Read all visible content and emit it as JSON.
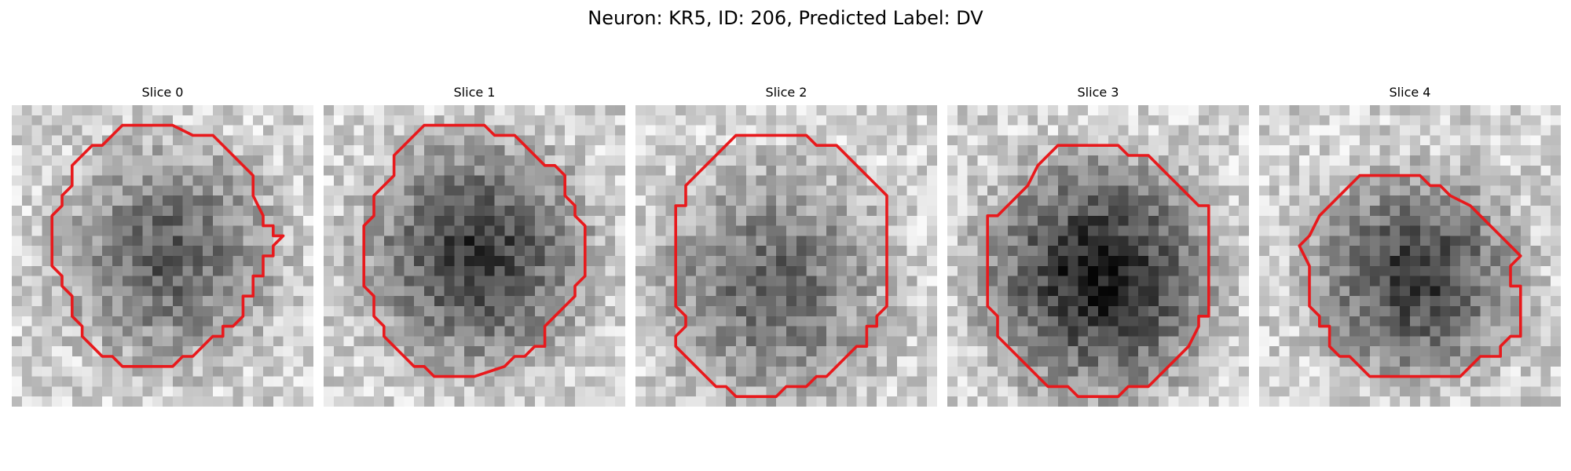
{
  "figure": {
    "title": "Neuron: KR5, ID: 206, Predicted Label: DV"
  },
  "style": {
    "contour_color": "#e8191c",
    "background": "#ffffff",
    "colormap": "gray"
  },
  "panels": [
    {
      "title": "Slice 0",
      "image_description": "grayscale pixelated microscopy crop of a neuron with red segmentation contour",
      "center_darkness": 0.45,
      "contour_cells": [
        [
          11,
          2
        ],
        [
          16,
          2
        ],
        [
          18,
          3
        ],
        [
          20,
          3
        ],
        [
          22,
          5
        ],
        [
          24,
          7
        ],
        [
          24,
          9
        ],
        [
          25,
          11
        ],
        [
          25,
          12
        ],
        [
          26,
          12
        ],
        [
          26,
          13
        ],
        [
          27,
          13
        ],
        [
          26,
          14
        ],
        [
          26,
          15
        ],
        [
          25,
          15
        ],
        [
          25,
          17
        ],
        [
          24,
          17
        ],
        [
          24,
          19
        ],
        [
          23,
          19
        ],
        [
          23,
          21
        ],
        [
          22,
          22
        ],
        [
          21,
          22
        ],
        [
          21,
          23
        ],
        [
          20,
          23
        ],
        [
          19,
          24
        ],
        [
          18,
          25
        ],
        [
          17,
          25
        ],
        [
          16,
          26
        ],
        [
          11,
          26
        ],
        [
          10,
          25
        ],
        [
          9,
          25
        ],
        [
          8,
          24
        ],
        [
          7,
          23
        ],
        [
          7,
          22
        ],
        [
          6,
          21
        ],
        [
          6,
          19
        ],
        [
          5,
          18
        ],
        [
          5,
          17
        ],
        [
          4,
          16
        ],
        [
          4,
          11
        ],
        [
          5,
          10
        ],
        [
          5,
          9
        ],
        [
          6,
          8
        ],
        [
          6,
          6
        ],
        [
          7,
          5
        ],
        [
          8,
          4
        ],
        [
          9,
          4
        ],
        [
          10,
          3
        ]
      ]
    },
    {
      "title": "Slice 1",
      "image_description": "grayscale pixelated microscopy crop of a neuron with red segmentation contour",
      "center_darkness": 0.6,
      "contour_cells": [
        [
          10,
          2
        ],
        [
          16,
          2
        ],
        [
          17,
          3
        ],
        [
          19,
          3
        ],
        [
          20,
          4
        ],
        [
          21,
          5
        ],
        [
          22,
          6
        ],
        [
          23,
          6
        ],
        [
          24,
          7
        ],
        [
          24,
          9
        ],
        [
          25,
          10
        ],
        [
          25,
          11
        ],
        [
          26,
          12
        ],
        [
          26,
          17
        ],
        [
          25,
          18
        ],
        [
          25,
          19
        ],
        [
          24,
          20
        ],
        [
          23,
          21
        ],
        [
          22,
          22
        ],
        [
          22,
          24
        ],
        [
          21,
          24
        ],
        [
          20,
          25
        ],
        [
          19,
          25
        ],
        [
          18,
          26
        ],
        [
          15,
          27
        ],
        [
          11,
          27
        ],
        [
          10,
          26
        ],
        [
          9,
          26
        ],
        [
          8,
          25
        ],
        [
          7,
          24
        ],
        [
          6,
          23
        ],
        [
          6,
          22
        ],
        [
          5,
          21
        ],
        [
          5,
          19
        ],
        [
          4,
          18
        ],
        [
          4,
          12
        ],
        [
          5,
          11
        ],
        [
          5,
          9
        ],
        [
          6,
          8
        ],
        [
          7,
          7
        ],
        [
          7,
          5
        ],
        [
          8,
          4
        ],
        [
          9,
          3
        ]
      ]
    },
    {
      "title": "Slice 2",
      "image_description": "grayscale pixelated microscopy crop of a neuron with red segmentation contour",
      "center_darkness": 0.42,
      "contour_cells": [
        [
          10,
          3
        ],
        [
          17,
          3
        ],
        [
          18,
          4
        ],
        [
          20,
          4
        ],
        [
          22,
          6
        ],
        [
          24,
          8
        ],
        [
          25,
          9
        ],
        [
          25,
          20
        ],
        [
          24,
          21
        ],
        [
          24,
          22
        ],
        [
          23,
          22
        ],
        [
          23,
          24
        ],
        [
          22,
          24
        ],
        [
          21,
          25
        ],
        [
          20,
          26
        ],
        [
          19,
          27
        ],
        [
          18,
          27
        ],
        [
          17,
          28
        ],
        [
          15,
          28
        ],
        [
          14,
          29
        ],
        [
          10,
          29
        ],
        [
          9,
          28
        ],
        [
          8,
          28
        ],
        [
          7,
          27
        ],
        [
          6,
          26
        ],
        [
          5,
          25
        ],
        [
          4,
          24
        ],
        [
          4,
          23
        ],
        [
          5,
          22
        ],
        [
          5,
          21
        ],
        [
          4,
          20
        ],
        [
          4,
          10
        ],
        [
          5,
          10
        ],
        [
          5,
          8
        ],
        [
          6,
          7
        ],
        [
          7,
          6
        ],
        [
          8,
          5
        ],
        [
          9,
          4
        ]
      ]
    },
    {
      "title": "Slice 3",
      "image_description": "grayscale pixelated microscopy crop of a neuron with red segmentation contour",
      "center_darkness": 0.72,
      "contour_cells": [
        [
          11,
          4
        ],
        [
          17,
          4
        ],
        [
          18,
          5
        ],
        [
          20,
          5
        ],
        [
          21,
          6
        ],
        [
          22,
          7
        ],
        [
          23,
          8
        ],
        [
          24,
          9
        ],
        [
          25,
          10
        ],
        [
          26,
          10
        ],
        [
          26,
          21
        ],
        [
          25,
          21
        ],
        [
          25,
          22
        ],
        [
          24,
          24
        ],
        [
          23,
          25
        ],
        [
          22,
          26
        ],
        [
          21,
          27
        ],
        [
          20,
          28
        ],
        [
          18,
          28
        ],
        [
          17,
          29
        ],
        [
          13,
          29
        ],
        [
          12,
          28
        ],
        [
          10,
          28
        ],
        [
          9,
          27
        ],
        [
          8,
          26
        ],
        [
          7,
          25
        ],
        [
          6,
          24
        ],
        [
          5,
          23
        ],
        [
          5,
          21
        ],
        [
          4,
          20
        ],
        [
          4,
          11
        ],
        [
          5,
          11
        ],
        [
          6,
          10
        ],
        [
          7,
          9
        ],
        [
          8,
          8
        ],
        [
          9,
          6
        ],
        [
          10,
          5
        ]
      ]
    },
    {
      "title": "Slice 4",
      "image_description": "grayscale pixelated microscopy crop of a neuron with red segmentation contour",
      "center_darkness": 0.6,
      "contour_cells": [
        [
          10,
          7
        ],
        [
          16,
          7
        ],
        [
          17,
          8
        ],
        [
          18,
          8
        ],
        [
          19,
          9
        ],
        [
          21,
          10
        ],
        [
          22,
          11
        ],
        [
          23,
          12
        ],
        [
          24,
          13
        ],
        [
          25,
          14
        ],
        [
          26,
          15
        ],
        [
          25,
          16
        ],
        [
          25,
          18
        ],
        [
          26,
          18
        ],
        [
          26,
          23
        ],
        [
          25,
          23
        ],
        [
          24,
          24
        ],
        [
          24,
          25
        ],
        [
          22,
          25
        ],
        [
          21,
          26
        ],
        [
          20,
          27
        ],
        [
          11,
          27
        ],
        [
          10,
          26
        ],
        [
          9,
          25
        ],
        [
          8,
          25
        ],
        [
          7,
          24
        ],
        [
          7,
          22
        ],
        [
          6,
          22
        ],
        [
          6,
          21
        ],
        [
          5,
          20
        ],
        [
          5,
          16
        ],
        [
          4,
          14
        ],
        [
          5,
          13
        ],
        [
          6,
          11
        ],
        [
          7,
          10
        ],
        [
          8,
          9
        ],
        [
          9,
          8
        ]
      ]
    }
  ]
}
